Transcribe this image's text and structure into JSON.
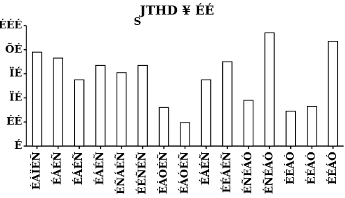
{
  "chart_data": {
    "type": "bar",
    "title": "JTHD ¥ ÉÉ",
    "subtitle": "S",
    "categories": [
      "ÉÁÏÉÑ",
      "ÉÁÉÑ",
      "ÉÁÉÑ",
      "ÉÁÉÑ",
      "ÉÑÁÉÑ",
      "ÉÉÑÉÑ",
      "ÉÁÓÉÑ",
      "ÉÁÓÉÑ",
      "ÉÁÉÑ",
      "ÉÉÁÉÑ",
      "ÉÑÉÁÓ",
      "ÉÑÉÁÓ",
      "ÉÉÁÓ",
      "ÉÉÁÓ",
      "ÉÉÁÓ"
    ],
    "values": [
      78,
      73,
      55,
      67,
      61,
      67,
      32,
      19.5,
      55,
      70,
      38,
      94,
      29,
      33,
      87
    ],
    "color": "#ffffff",
    "ylim": [
      0,
      100
    ],
    "yticks": [
      {
        "value": 0,
        "label": "É"
      },
      {
        "value": 20,
        "label": "ÉÉ"
      },
      {
        "value": 40,
        "label": "ÏÉ"
      },
      {
        "value": 60,
        "label": "ÏÉ"
      },
      {
        "value": 80,
        "label": "ÕÉ"
      },
      {
        "value": 100,
        "label": "ÉÉÉ"
      }
    ],
    "grid": false
  }
}
